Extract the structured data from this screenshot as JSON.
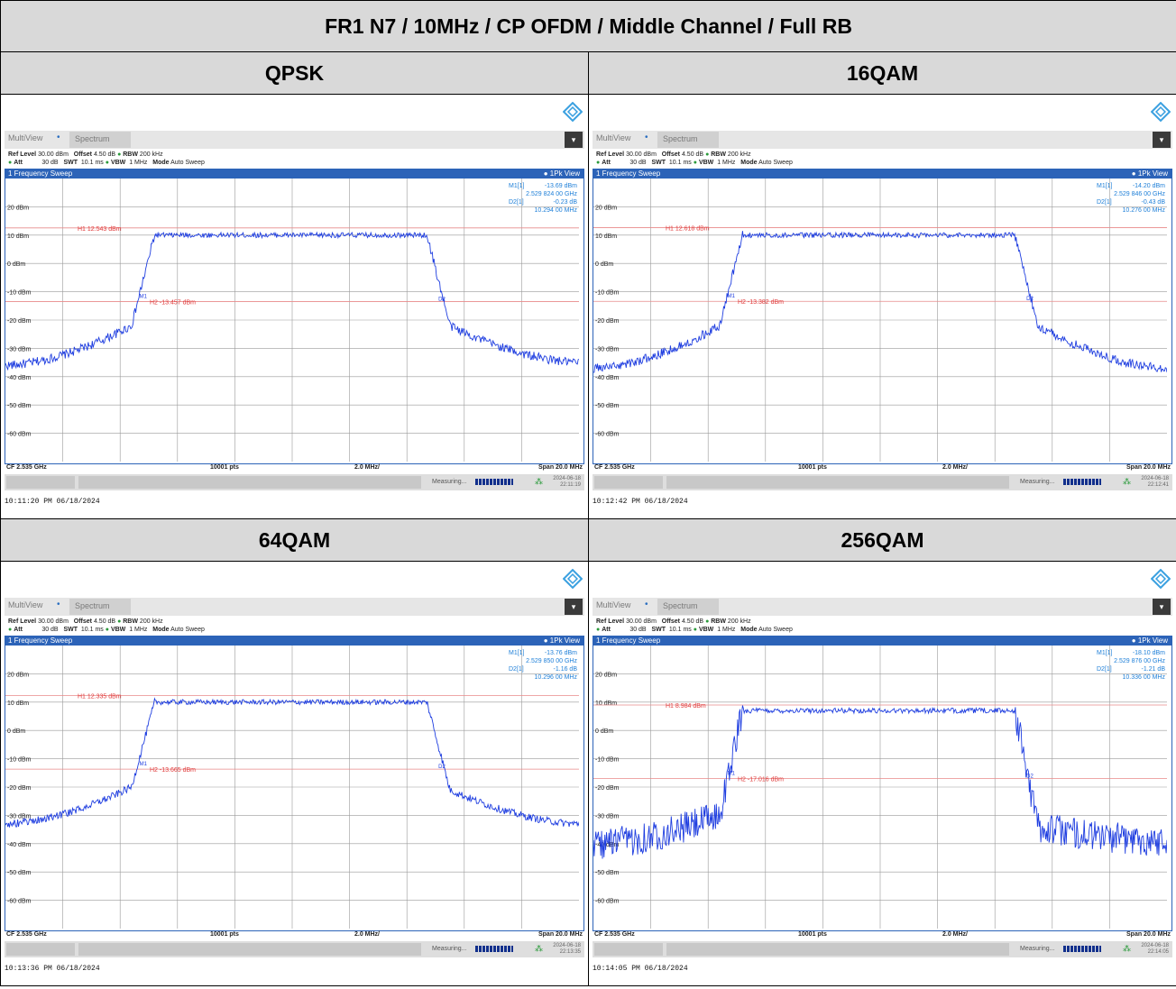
{
  "report": {
    "title": "FR1 N7 / 10MHz / CP OFDM / Middle Channel / Full RB",
    "rows": [
      [
        "QPSK",
        "16QAM"
      ],
      [
        "64QAM",
        "256QAM"
      ]
    ]
  },
  "analyzer_common": {
    "toolbar_multiview": "MultiView",
    "toolbar_spectrum": "Spectrum",
    "ref_level_label": "Ref Level",
    "ref_level_value": "30.00 dBm",
    "offset_label": "Offset",
    "offset_value": "4.50 dB",
    "rbw_label": "RBW",
    "rbw_value": "200 kHz",
    "att_label": "Att",
    "att_value": "30 dB",
    "swt_label": "SWT",
    "swt_value": "10.1 ms",
    "vbw_label": "VBW",
    "vbw_value": "1 MHz",
    "mode_label": "Mode",
    "mode_value": "Auto Sweep",
    "panel_title": "1 Frequency Sweep",
    "pk_view": "1Pk View",
    "cf": "CF 2.535 GHz",
    "points": "10001 pts",
    "per_div": "2.0 MHz/",
    "span": "Span 20.0 MHz",
    "measuring": "Measuring...",
    "y_ticks": [
      "20 dBm",
      "10 dBm",
      "0 dBm",
      "-10 dBm",
      "-20 dBm",
      "-30 dBm",
      "-40 dBm",
      "-50 dBm",
      "-60 dBm"
    ],
    "ref_dbm": 30,
    "bottom_dbm": -70,
    "colors": {
      "trace": "#1f3ee0",
      "hline": "#e88a8a",
      "marker_text": "#1e7fd8",
      "panel_blue": "#2c63b8"
    }
  },
  "shots": [
    {
      "modulation": "QPSK",
      "m1_label": "M1[1]",
      "m1_value": "-13.69 dBm",
      "m1_freq": "2.529 824 00 GHz",
      "d2_label": "D2[1]",
      "d2_value": "-0.23 dB",
      "d2_freq": "10.294 00 MHz",
      "h1_label": "H1 12.543 dBm",
      "h1_dbm": 12.543,
      "h2_label": "H2 -13.457 dBm",
      "h2_dbm": -13.457,
      "plateau_dbm": 10,
      "edge_l_dbm": -22,
      "edge_r_dbm": -22,
      "floor_l_dbm": -36,
      "floor_r_dbm": -35,
      "noise": 1.6,
      "m1_frac": 0.24,
      "d2_frac": 0.755,
      "status_date": "2024-06-18",
      "status_time": "22:11:19",
      "timestamp": "10:11:20 PM  06/18/2024"
    },
    {
      "modulation": "16QAM",
      "m1_label": "M1[1]",
      "m1_value": "-14.20 dBm",
      "m1_freq": "2.529 846 00 GHz",
      "d2_label": "D2[1]",
      "d2_value": "-0.43 dB",
      "d2_freq": "10.276 00 MHz",
      "h1_label": "H1 12.618 dBm",
      "h1_dbm": 12.618,
      "h2_label": "H2 -13.382 dBm",
      "h2_dbm": -13.382,
      "plateau_dbm": 10,
      "edge_l_dbm": -22,
      "edge_r_dbm": -22,
      "floor_l_dbm": -37,
      "floor_r_dbm": -37,
      "noise": 1.6,
      "m1_frac": 0.24,
      "d2_frac": 0.755,
      "status_date": "2024-06-18",
      "status_time": "22:12:41",
      "timestamp": "10:12:42 PM  06/18/2024"
    },
    {
      "modulation": "64QAM",
      "m1_label": "M1[1]",
      "m1_value": "-13.76 dBm",
      "m1_freq": "2.529 850 00 GHz",
      "d2_label": "D2[1]",
      "d2_value": "-1.16 dB",
      "d2_freq": "10.296 00 MHz",
      "h1_label": "H1 12.335 dBm",
      "h1_dbm": 12.335,
      "h2_label": "H2 -13.665 dBm",
      "h2_dbm": -13.665,
      "plateau_dbm": 10,
      "edge_l_dbm": -20,
      "edge_r_dbm": -21,
      "floor_l_dbm": -33,
      "floor_r_dbm": -33,
      "noise": 1.3,
      "m1_frac": 0.24,
      "d2_frac": 0.755,
      "status_date": "2024-06-18",
      "status_time": "22:13:35",
      "timestamp": "10:13:36 PM  06/18/2024"
    },
    {
      "modulation": "256QAM",
      "m1_label": "M1[1]",
      "m1_value": "-18.10 dBm",
      "m1_freq": "2.529 876 00 GHz",
      "d2_label": "D2[1]",
      "d2_value": "-1.21 dB",
      "d2_freq": "10.336 00 MHz",
      "h1_label": "H1 8.984 dBm",
      "h1_dbm": 8.984,
      "h2_label": "H2 -17.016 dBm",
      "h2_dbm": -17.016,
      "plateau_dbm": 7,
      "edge_l_dbm": -30,
      "edge_r_dbm": -34,
      "floor_l_dbm": -40,
      "floor_r_dbm": -39,
      "noise": 5.5,
      "m1_frac": 0.24,
      "d2_frac": 0.755,
      "status_date": "2024-06-18",
      "status_time": "22:14:05",
      "timestamp": "10:14:05 PM  06/18/2024"
    }
  ]
}
